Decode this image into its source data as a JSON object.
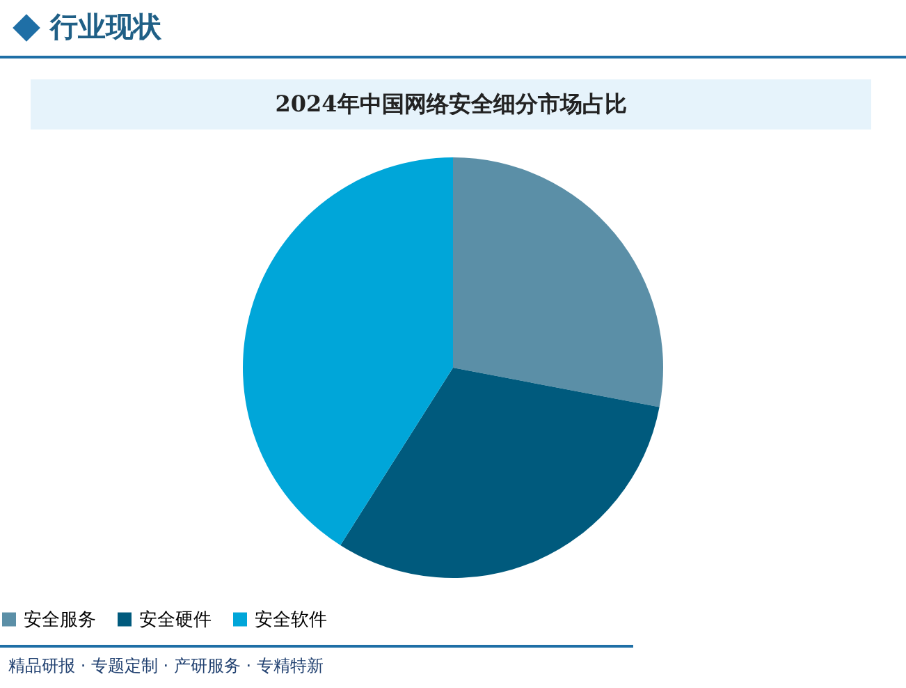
{
  "chart_data": {
    "type": "pie",
    "title": "2024年中国网络安全细分市场占比",
    "categories": [
      "安全服务",
      "安全硬件",
      "安全软件"
    ],
    "values": [
      28,
      31,
      41
    ],
    "colors": [
      "#5b8fa7",
      "#005a7d",
      "#00a6d9"
    ],
    "legend": "bottom",
    "annotations": [
      "行业现状",
      "精品研报 · 专题定制 · 产研服务 · 专精特新"
    ]
  }
}
